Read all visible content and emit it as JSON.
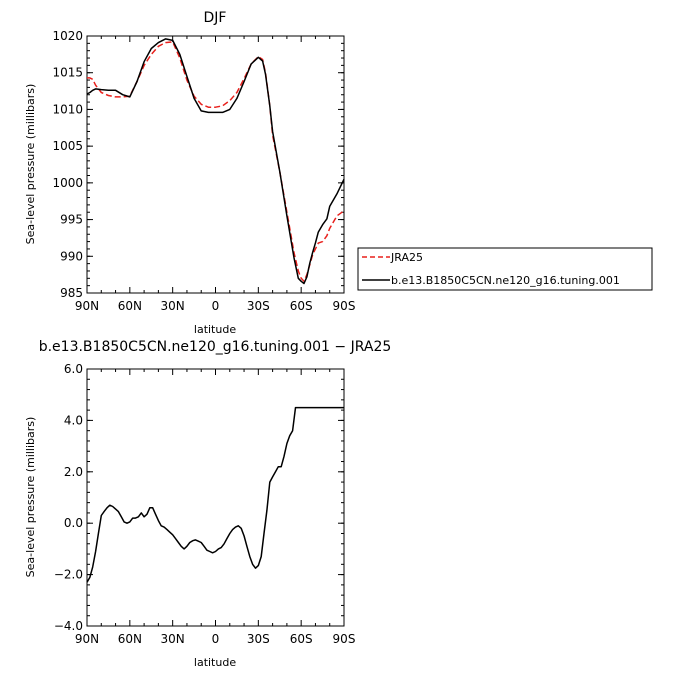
{
  "chart_data": [
    {
      "type": "line",
      "title": "DJF",
      "xlabel": "latitude",
      "ylabel": "Sea-level pressure (millibars)",
      "xlim": [
        90,
        -90
      ],
      "ylim": [
        985,
        1020
      ],
      "x_tick_values": [
        90,
        60,
        30,
        0,
        -30,
        -60,
        -90
      ],
      "x_tick_labels": [
        "90N",
        "60N",
        "30N",
        "0",
        "30S",
        "60S",
        "90S"
      ],
      "y_tick_values": [
        985,
        990,
        995,
        1000,
        1005,
        1010,
        1015,
        1020
      ],
      "y_tick_labels": [
        "985",
        "990",
        "995",
        "1000",
        "1005",
        "1010",
        "1015",
        "1020"
      ],
      "legend_position": "right-bottom, outside plot",
      "series": [
        {
          "name": "JRA25",
          "color": "#e8201c",
          "dash": "dashed",
          "x": [
            90,
            88,
            86,
            84,
            80,
            75,
            70,
            65,
            60,
            55,
            50,
            45,
            40,
            35,
            30,
            25,
            20,
            15,
            10,
            5,
            0,
            -5,
            -10,
            -15,
            -20,
            -25,
            -30,
            -33,
            -35,
            -38,
            -40,
            -45,
            -50,
            -55,
            -58,
            -60,
            -62,
            -64,
            -66,
            -68,
            -70,
            -72,
            -75,
            -78,
            -80,
            -85,
            -90
          ],
          "y": [
            1014.3,
            1014.3,
            1014.1,
            1013.3,
            1012.3,
            1011.9,
            1011.7,
            1011.7,
            1011.8,
            1013.8,
            1016.0,
            1017.5,
            1018.6,
            1019.1,
            1019.2,
            1017.0,
            1014.0,
            1011.8,
            1010.7,
            1010.3,
            1010.3,
            1010.5,
            1011.2,
            1012.3,
            1014.2,
            1016.2,
            1017.2,
            1016.8,
            1015.0,
            1010.5,
            1006.5,
            1001.5,
            996.0,
            990.5,
            988.0,
            987.0,
            986.6,
            987.5,
            988.8,
            990.2,
            991.0,
            991.8,
            992.0,
            992.8,
            993.8,
            995.5,
            996.2
          ]
        },
        {
          "name": "b.e13.B1850C5CN.ne120_g16.tuning.001",
          "color": "#000000",
          "dash": "solid",
          "x": [
            90,
            88,
            86,
            84,
            80,
            75,
            70,
            65,
            60,
            55,
            50,
            45,
            40,
            35,
            30,
            25,
            20,
            15,
            10,
            5,
            0,
            -5,
            -10,
            -15,
            -20,
            -25,
            -30,
            -33,
            -35,
            -38,
            -40,
            -45,
            -50,
            -55,
            -58,
            -60,
            -62,
            -64,
            -66,
            -68,
            -70,
            -72,
            -75,
            -78,
            -80,
            -85,
            -90
          ],
          "y": [
            1012.1,
            1012.3,
            1012.6,
            1012.8,
            1012.7,
            1012.6,
            1012.6,
            1012.0,
            1011.7,
            1013.8,
            1016.5,
            1018.3,
            1019.1,
            1019.6,
            1019.4,
            1017.5,
            1014.5,
            1011.5,
            1009.8,
            1009.6,
            1009.6,
            1009.6,
            1010.0,
            1011.5,
            1013.8,
            1016.2,
            1017.1,
            1016.6,
            1014.8,
            1010.5,
            1007.0,
            1001.5,
            995.5,
            989.8,
            987.0,
            986.6,
            986.3,
            987.2,
            989.0,
            990.5,
            991.8,
            993.3,
            994.3,
            995.1,
            996.8,
            998.5,
            1000.5
          ]
        }
      ]
    },
    {
      "type": "line",
      "title": "b.e13.B1850C5CN.ne120_g16.tuning.001 − JRA25",
      "xlabel": "latitude",
      "ylabel": "Sea-level pressure (millibars)",
      "xlim": [
        90,
        -90
      ],
      "ylim": [
        -4,
        6
      ],
      "x_tick_values": [
        90,
        60,
        30,
        0,
        -30,
        -60,
        -90
      ],
      "x_tick_labels": [
        "90N",
        "60N",
        "30N",
        "0",
        "30S",
        "60S",
        "90S"
      ],
      "y_tick_values": [
        -4,
        -2,
        0,
        2,
        4,
        6
      ],
      "y_tick_labels": [
        "−4.0",
        "−2.0",
        "0.0",
        "2.0",
        "4.0",
        "6.0"
      ],
      "series": [
        {
          "color": "#000000",
          "dash": "solid",
          "x": [
            90,
            88,
            86,
            84,
            82,
            80,
            78,
            76,
            74,
            72,
            70,
            68,
            66,
            64,
            62,
            60,
            58,
            56,
            54,
            52,
            50,
            48,
            46,
            44,
            42,
            40,
            38,
            36,
            34,
            32,
            30,
            28,
            26,
            24,
            22,
            20,
            18,
            16,
            14,
            12,
            10,
            8,
            6,
            4,
            2,
            0,
            -2,
            -4,
            -6,
            -8,
            -10,
            -12,
            -14,
            -16,
            -18,
            -20,
            -22,
            -24,
            -26,
            -28,
            -30,
            -32,
            -34,
            -36,
            -38,
            -40,
            -42,
            -44,
            -46,
            -48,
            -50,
            -52,
            -54,
            -56,
            -58,
            -60,
            -62,
            -64,
            -66,
            -68,
            -70,
            -72,
            -74,
            -76,
            -78,
            -80,
            -82,
            -84,
            -86,
            -88,
            -90
          ],
          "y": [
            -2.3,
            -2.1,
            -1.7,
            -1.1,
            -0.4,
            0.3,
            0.45,
            0.6,
            0.7,
            0.65,
            0.55,
            0.45,
            0.25,
            0.05,
            0.0,
            0.05,
            0.2,
            0.2,
            0.25,
            0.4,
            0.25,
            0.35,
            0.6,
            0.6,
            0.35,
            0.1,
            -0.1,
            -0.15,
            -0.25,
            -0.35,
            -0.45,
            -0.6,
            -0.75,
            -0.9,
            -1.0,
            -0.9,
            -0.75,
            -0.68,
            -0.65,
            -0.7,
            -0.75,
            -0.9,
            -1.05,
            -1.1,
            -1.15,
            -1.1,
            -1.0,
            -0.95,
            -0.8,
            -0.6,
            -0.4,
            -0.25,
            -0.15,
            -0.1,
            -0.2,
            -0.5,
            -0.9,
            -1.3,
            -1.6,
            -1.75,
            -1.65,
            -1.3,
            -0.4,
            0.5,
            1.6,
            1.8,
            2.0,
            2.2,
            2.2,
            2.6,
            3.1,
            3.4,
            3.6,
            4.5,
            4.5,
            4.5,
            4.5,
            4.5,
            4.5,
            4.5,
            4.5,
            4.5,
            4.5,
            4.5,
            4.5,
            4.5,
            4.5,
            4.5,
            4.5,
            4.5,
            4.5
          ]
        }
      ]
    }
  ]
}
